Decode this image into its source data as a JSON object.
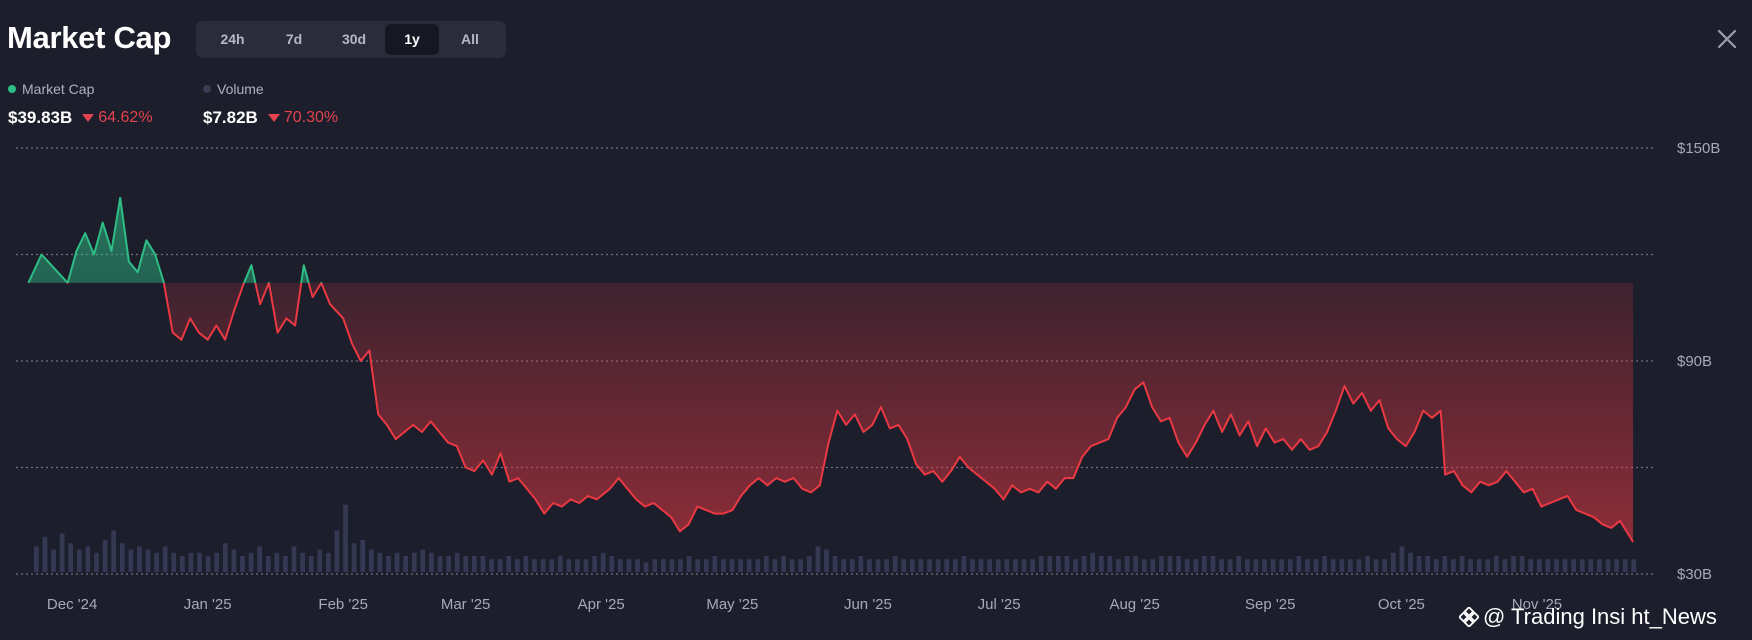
{
  "header": {
    "title": "Market Cap",
    "tabs": [
      {
        "label": "24h",
        "active": false
      },
      {
        "label": "7d",
        "active": false
      },
      {
        "label": "30d",
        "active": false
      },
      {
        "label": "1y",
        "active": true
      },
      {
        "label": "All",
        "active": false
      }
    ],
    "close_icon": "close-icon"
  },
  "legend": {
    "market_cap": {
      "label": "Market Cap",
      "color": "#2ebd85",
      "value": "$39.83B",
      "change": "64.62%"
    },
    "volume": {
      "label": "Volume",
      "color": "#3a3d52",
      "value": "$7.82B",
      "change": "70.30%"
    }
  },
  "watermark": {
    "text": "@ Trading Insi  ht_News",
    "icon": "binance-logo-icon"
  },
  "colors": {
    "up": "#2ebd85",
    "down": "#ea3943",
    "grid": "#6f7285",
    "background": "#1c1e2b"
  },
  "chart_data": {
    "type": "area",
    "ylim": [
      30,
      150
    ],
    "baseline": 112,
    "yticks": [
      {
        "value": 150,
        "label": "$150B"
      },
      {
        "value": 90,
        "label": "$90B"
      },
      {
        "value": 30,
        "label": "$30B"
      }
    ],
    "gridlines": [
      150,
      120,
      90,
      60,
      30
    ],
    "xlim": [
      "2024-11-20",
      "2025-11-28"
    ],
    "xticks": [
      {
        "date": "2024-12-01",
        "label": "Dec '24"
      },
      {
        "date": "2025-01-01",
        "label": "Jan '25"
      },
      {
        "date": "2025-02-01",
        "label": "Feb '25"
      },
      {
        "date": "2025-03-01",
        "label": "Mar '25"
      },
      {
        "date": "2025-04-01",
        "label": "Apr '25"
      },
      {
        "date": "2025-05-01",
        "label": "May '25"
      },
      {
        "date": "2025-06-01",
        "label": "Jun '25"
      },
      {
        "date": "2025-07-01",
        "label": "Jul '25"
      },
      {
        "date": "2025-08-01",
        "label": "Aug '25"
      },
      {
        "date": "2025-09-01",
        "label": "Sep '25"
      },
      {
        "date": "2025-10-01",
        "label": "Oct '25"
      },
      {
        "date": "2025-11-01",
        "label": "Nov '25"
      }
    ],
    "series": [
      {
        "name": "Market Cap",
        "points": [
          [
            "2024-11-21",
            112
          ],
          [
            "2024-11-24",
            120
          ],
          [
            "2024-11-27",
            116
          ],
          [
            "2024-11-30",
            112
          ],
          [
            "2024-12-02",
            121
          ],
          [
            "2024-12-04",
            126
          ],
          [
            "2024-12-06",
            120
          ],
          [
            "2024-12-08",
            129
          ],
          [
            "2024-12-10",
            121
          ],
          [
            "2024-12-12",
            136
          ],
          [
            "2024-12-14",
            118
          ],
          [
            "2024-12-16",
            115
          ],
          [
            "2024-12-18",
            124
          ],
          [
            "2024-12-20",
            120
          ],
          [
            "2024-12-22",
            112
          ],
          [
            "2024-12-24",
            98
          ],
          [
            "2024-12-26",
            96
          ],
          [
            "2024-12-28",
            102
          ],
          [
            "2024-12-30",
            98
          ],
          [
            "2025-01-01",
            96
          ],
          [
            "2025-01-03",
            100
          ],
          [
            "2025-01-05",
            96
          ],
          [
            "2025-01-07",
            104
          ],
          [
            "2025-01-09",
            111
          ],
          [
            "2025-01-11",
            117
          ],
          [
            "2025-01-13",
            106
          ],
          [
            "2025-01-15",
            112
          ],
          [
            "2025-01-17",
            98
          ],
          [
            "2025-01-19",
            102
          ],
          [
            "2025-01-21",
            100
          ],
          [
            "2025-01-23",
            117
          ],
          [
            "2025-01-25",
            108
          ],
          [
            "2025-01-27",
            112
          ],
          [
            "2025-01-29",
            106
          ],
          [
            "2025-02-01",
            102
          ],
          [
            "2025-02-03",
            95
          ],
          [
            "2025-02-05",
            90
          ],
          [
            "2025-02-07",
            93
          ],
          [
            "2025-02-09",
            75
          ],
          [
            "2025-02-11",
            72
          ],
          [
            "2025-02-13",
            68
          ],
          [
            "2025-02-15",
            70
          ],
          [
            "2025-02-17",
            72
          ],
          [
            "2025-02-19",
            70
          ],
          [
            "2025-02-21",
            73
          ],
          [
            "2025-02-23",
            70
          ],
          [
            "2025-02-25",
            67
          ],
          [
            "2025-02-27",
            66
          ],
          [
            "2025-03-01",
            60
          ],
          [
            "2025-03-03",
            59
          ],
          [
            "2025-03-05",
            62
          ],
          [
            "2025-03-07",
            58
          ],
          [
            "2025-03-09",
            64
          ],
          [
            "2025-03-11",
            56
          ],
          [
            "2025-03-13",
            57
          ],
          [
            "2025-03-15",
            54
          ],
          [
            "2025-03-17",
            51
          ],
          [
            "2025-03-19",
            47
          ],
          [
            "2025-03-21",
            50
          ],
          [
            "2025-03-23",
            49
          ],
          [
            "2025-03-25",
            51
          ],
          [
            "2025-03-27",
            50
          ],
          [
            "2025-03-29",
            52
          ],
          [
            "2025-03-31",
            51
          ],
          [
            "2025-04-03",
            54
          ],
          [
            "2025-04-05",
            57
          ],
          [
            "2025-04-07",
            54
          ],
          [
            "2025-04-09",
            51
          ],
          [
            "2025-04-11",
            49
          ],
          [
            "2025-04-13",
            50
          ],
          [
            "2025-04-15",
            48
          ],
          [
            "2025-04-17",
            46
          ],
          [
            "2025-04-19",
            42
          ],
          [
            "2025-04-21",
            44
          ],
          [
            "2025-04-23",
            49
          ],
          [
            "2025-04-25",
            48
          ],
          [
            "2025-04-27",
            47
          ],
          [
            "2025-04-29",
            47
          ],
          [
            "2025-05-01",
            48
          ],
          [
            "2025-05-03",
            52
          ],
          [
            "2025-05-05",
            55
          ],
          [
            "2025-05-07",
            57
          ],
          [
            "2025-05-09",
            55
          ],
          [
            "2025-05-11",
            57
          ],
          [
            "2025-05-13",
            56
          ],
          [
            "2025-05-15",
            57
          ],
          [
            "2025-05-17",
            54
          ],
          [
            "2025-05-19",
            53
          ],
          [
            "2025-05-21",
            55
          ],
          [
            "2025-05-23",
            67
          ],
          [
            "2025-05-25",
            76
          ],
          [
            "2025-05-27",
            72
          ],
          [
            "2025-05-29",
            75
          ],
          [
            "2025-05-31",
            70
          ],
          [
            "2025-06-02",
            72
          ],
          [
            "2025-06-04",
            77
          ],
          [
            "2025-06-06",
            71
          ],
          [
            "2025-06-08",
            72
          ],
          [
            "2025-06-10",
            68
          ],
          [
            "2025-06-12",
            61
          ],
          [
            "2025-06-14",
            58
          ],
          [
            "2025-06-16",
            59
          ],
          [
            "2025-06-18",
            56
          ],
          [
            "2025-06-20",
            59
          ],
          [
            "2025-06-22",
            63
          ],
          [
            "2025-06-24",
            60
          ],
          [
            "2025-06-26",
            58
          ],
          [
            "2025-06-28",
            56
          ],
          [
            "2025-06-30",
            54
          ],
          [
            "2025-07-02",
            51
          ],
          [
            "2025-07-04",
            55
          ],
          [
            "2025-07-06",
            53
          ],
          [
            "2025-07-08",
            54
          ],
          [
            "2025-07-10",
            53
          ],
          [
            "2025-07-12",
            56
          ],
          [
            "2025-07-14",
            54
          ],
          [
            "2025-07-16",
            57
          ],
          [
            "2025-07-18",
            57
          ],
          [
            "2025-07-20",
            63
          ],
          [
            "2025-07-22",
            66
          ],
          [
            "2025-07-24",
            67
          ],
          [
            "2025-07-26",
            68
          ],
          [
            "2025-07-28",
            74
          ],
          [
            "2025-07-30",
            77
          ],
          [
            "2025-08-01",
            82
          ],
          [
            "2025-08-03",
            84
          ],
          [
            "2025-08-05",
            77
          ],
          [
            "2025-08-07",
            73
          ],
          [
            "2025-08-09",
            74
          ],
          [
            "2025-08-11",
            67
          ],
          [
            "2025-08-13",
            63
          ],
          [
            "2025-08-15",
            67
          ],
          [
            "2025-08-17",
            72
          ],
          [
            "2025-08-19",
            76
          ],
          [
            "2025-08-21",
            70
          ],
          [
            "2025-08-23",
            75
          ],
          [
            "2025-08-25",
            69
          ],
          [
            "2025-08-27",
            73
          ],
          [
            "2025-08-29",
            66
          ],
          [
            "2025-08-31",
            71
          ],
          [
            "2025-09-02",
            67
          ],
          [
            "2025-09-04",
            68
          ],
          [
            "2025-09-06",
            65
          ],
          [
            "2025-09-08",
            68
          ],
          [
            "2025-09-10",
            65
          ],
          [
            "2025-09-12",
            66
          ],
          [
            "2025-09-14",
            70
          ],
          [
            "2025-09-16",
            76
          ],
          [
            "2025-09-18",
            83
          ],
          [
            "2025-09-20",
            78
          ],
          [
            "2025-09-22",
            81
          ],
          [
            "2025-09-24",
            76
          ],
          [
            "2025-09-26",
            79
          ],
          [
            "2025-09-28",
            71
          ],
          [
            "2025-09-30",
            68
          ],
          [
            "2025-10-02",
            66
          ],
          [
            "2025-10-04",
            70
          ],
          [
            "2025-10-06",
            76
          ],
          [
            "2025-10-08",
            74
          ],
          [
            "2025-10-10",
            76
          ],
          [
            "2025-10-11",
            58
          ],
          [
            "2025-10-13",
            59
          ],
          [
            "2025-10-15",
            55
          ],
          [
            "2025-10-17",
            53
          ],
          [
            "2025-10-19",
            56
          ],
          [
            "2025-10-21",
            55
          ],
          [
            "2025-10-23",
            56
          ],
          [
            "2025-10-25",
            59
          ],
          [
            "2025-10-27",
            56
          ],
          [
            "2025-10-29",
            53
          ],
          [
            "2025-10-31",
            54
          ],
          [
            "2025-11-02",
            49
          ],
          [
            "2025-11-04",
            50
          ],
          [
            "2025-11-06",
            51
          ],
          [
            "2025-11-08",
            52
          ],
          [
            "2025-11-10",
            48
          ],
          [
            "2025-11-12",
            47
          ],
          [
            "2025-11-14",
            46
          ],
          [
            "2025-11-16",
            44
          ],
          [
            "2025-11-18",
            43
          ],
          [
            "2025-11-20",
            45
          ],
          [
            "2025-11-23",
            39
          ]
        ]
      }
    ],
    "volume": [
      8,
      11,
      7,
      12,
      9,
      7,
      8,
      6,
      10,
      13,
      9,
      7,
      8,
      7,
      6,
      8,
      6,
      5,
      6,
      6,
      5,
      6,
      9,
      7,
      5,
      6,
      8,
      5,
      6,
      5,
      8,
      6,
      5,
      7,
      6,
      13,
      21,
      9,
      10,
      7,
      6,
      5,
      6,
      5,
      6,
      7,
      6,
      5,
      5,
      6,
      5,
      5,
      5,
      4,
      4,
      5,
      4,
      5,
      4,
      4,
      4,
      5,
      4,
      4,
      4,
      5,
      6,
      5,
      4,
      4,
      4,
      3,
      4,
      4,
      4,
      4,
      5,
      4,
      4,
      5,
      4,
      4,
      4,
      4,
      4,
      5,
      4,
      5,
      4,
      4,
      5,
      8,
      7,
      5,
      4,
      4,
      5,
      4,
      4,
      4,
      5,
      4,
      4,
      4,
      4,
      4,
      4,
      4,
      5,
      4,
      4,
      4,
      4,
      4,
      4,
      4,
      4,
      5,
      5,
      5,
      5,
      4,
      5,
      6,
      5,
      5,
      4,
      5,
      5,
      4,
      4,
      5,
      5,
      5,
      4,
      4,
      5,
      5,
      4,
      4,
      5,
      4,
      4,
      4,
      4,
      4,
      4,
      5,
      4,
      4,
      5,
      4,
      4,
      4,
      4,
      5,
      4,
      4,
      6,
      8,
      6,
      5,
      5,
      4,
      5,
      4,
      5,
      4,
      4,
      4,
      5,
      4,
      5,
      5,
      4,
      4,
      4,
      4,
      4,
      4,
      4,
      4,
      4,
      4,
      4,
      4,
      4
    ]
  }
}
